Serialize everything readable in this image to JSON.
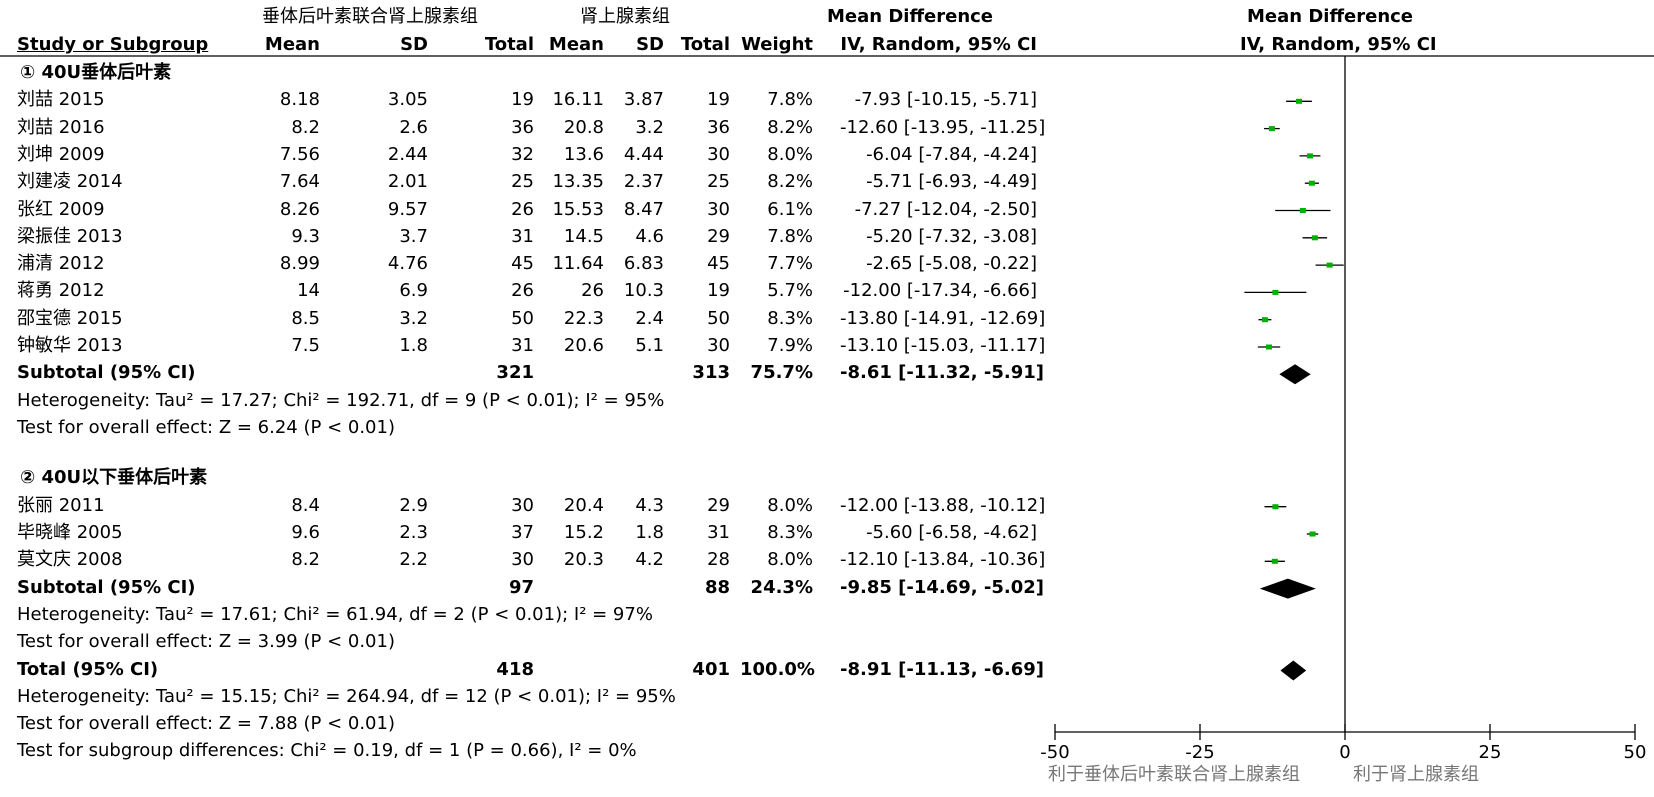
{
  "header": {
    "group1_title": "垂体后叶素联合肾上腺素组",
    "group2_title": "肾上腺素组",
    "md_title_left": "Mean Difference",
    "md_title_right": "Mean Difference",
    "col_study": "Study or Subgroup",
    "col_mean1": "Mean",
    "col_sd1": "SD",
    "col_total1": "Total",
    "col_mean2": "Mean",
    "col_sd2": "SD",
    "col_total2": "Total",
    "col_weight": "Weight",
    "col_ci_left": "IV, Random, 95% CI",
    "col_ci_right": "IV, Random, 95% CI"
  },
  "chart_data": {
    "type": "forest",
    "xlim": [
      -50,
      50
    ],
    "x_ticks": [
      "-50",
      "-25",
      "0",
      "25",
      "50"
    ],
    "x_tick_values": [
      -50,
      -25,
      0,
      25,
      50
    ],
    "favours_left": "利于垂体后叶素联合肾上腺素组",
    "favours_right": "利于肾上腺素组",
    "subgroups": [
      {
        "title": "① 40U垂体后叶素",
        "studies": [
          {
            "name": "刘喆 2015",
            "mean1": "8.18",
            "sd1": "3.05",
            "n1": "19",
            "mean2": "16.11",
            "sd2": "3.87",
            "n2": "19",
            "weight": "7.8%",
            "ci_text": "-7.93 [-10.15, -5.71]",
            "md": -7.93,
            "lo": -10.15,
            "hi": -5.71
          },
          {
            "name": "刘喆 2016",
            "mean1": "8.2",
            "sd1": "2.6",
            "n1": "36",
            "mean2": "20.8",
            "sd2": "3.2",
            "n2": "36",
            "weight": "8.2%",
            "ci_text": "-12.60 [-13.95, -11.25]",
            "md": -12.6,
            "lo": -13.95,
            "hi": -11.25
          },
          {
            "name": "刘坤 2009",
            "mean1": "7.56",
            "sd1": "2.44",
            "n1": "32",
            "mean2": "13.6",
            "sd2": "4.44",
            "n2": "30",
            "weight": "8.0%",
            "ci_text": "-6.04 [-7.84, -4.24]",
            "md": -6.04,
            "lo": -7.84,
            "hi": -4.24
          },
          {
            "name": "刘建凌 2014",
            "mean1": "7.64",
            "sd1": "2.01",
            "n1": "25",
            "mean2": "13.35",
            "sd2": "2.37",
            "n2": "25",
            "weight": "8.2%",
            "ci_text": "-5.71 [-6.93, -4.49]",
            "md": -5.71,
            "lo": -6.93,
            "hi": -4.49
          },
          {
            "name": "张红 2009",
            "mean1": "8.26",
            "sd1": "9.57",
            "n1": "26",
            "mean2": "15.53",
            "sd2": "8.47",
            "n2": "30",
            "weight": "6.1%",
            "ci_text": "-7.27 [-12.04, -2.50]",
            "md": -7.27,
            "lo": -12.04,
            "hi": -2.5
          },
          {
            "name": "梁振佳 2013",
            "mean1": "9.3",
            "sd1": "3.7",
            "n1": "31",
            "mean2": "14.5",
            "sd2": "4.6",
            "n2": "29",
            "weight": "7.8%",
            "ci_text": "-5.20 [-7.32, -3.08]",
            "md": -5.2,
            "lo": -7.32,
            "hi": -3.08
          },
          {
            "name": "浦清 2012",
            "mean1": "8.99",
            "sd1": "4.76",
            "n1": "45",
            "mean2": "11.64",
            "sd2": "6.83",
            "n2": "45",
            "weight": "7.7%",
            "ci_text": "-2.65 [-5.08, -0.22]",
            "md": -2.65,
            "lo": -5.08,
            "hi": -0.22
          },
          {
            "name": "蒋勇 2012",
            "mean1": "14",
            "sd1": "6.9",
            "n1": "26",
            "mean2": "26",
            "sd2": "10.3",
            "n2": "19",
            "weight": "5.7%",
            "ci_text": "-12.00 [-17.34, -6.66]",
            "md": -12.0,
            "lo": -17.34,
            "hi": -6.66
          },
          {
            "name": "邵宝德 2015",
            "mean1": "8.5",
            "sd1": "3.2",
            "n1": "50",
            "mean2": "22.3",
            "sd2": "2.4",
            "n2": "50",
            "weight": "8.3%",
            "ci_text": "-13.80 [-14.91, -12.69]",
            "md": -13.8,
            "lo": -14.91,
            "hi": -12.69
          },
          {
            "name": "钟敏华 2013",
            "mean1": "7.5",
            "sd1": "1.8",
            "n1": "31",
            "mean2": "20.6",
            "sd2": "5.1",
            "n2": "30",
            "weight": "7.9%",
            "ci_text": "-13.10 [-15.03, -11.17]",
            "md": -13.1,
            "lo": -15.03,
            "hi": -11.17
          }
        ],
        "subtotal": {
          "label": "Subtotal (95% CI)",
          "n1": "321",
          "n2": "313",
          "weight": "75.7%",
          "ci_text": "-8.61 [-11.32, -5.91]",
          "md": -8.61,
          "lo": -11.32,
          "hi": -5.91
        },
        "heterogeneity": "Heterogeneity: Tau² = 17.27; Chi² = 192.71, df = 9 (P < 0.01); I² = 95%",
        "overall": "Test for overall effect: Z = 6.24 (P < 0.01)"
      },
      {
        "title": "② 40U以下垂体后叶素",
        "studies": [
          {
            "name": "张丽 2011",
            "mean1": "8.4",
            "sd1": "2.9",
            "n1": "30",
            "mean2": "20.4",
            "sd2": "4.3",
            "n2": "29",
            "weight": "8.0%",
            "ci_text": "-12.00 [-13.88, -10.12]",
            "md": -12.0,
            "lo": -13.88,
            "hi": -10.12
          },
          {
            "name": "毕晓峰 2005",
            "mean1": "9.6",
            "sd1": "2.3",
            "n1": "37",
            "mean2": "15.2",
            "sd2": "1.8",
            "n2": "31",
            "weight": "8.3%",
            "ci_text": "-5.60 [-6.58, -4.62]",
            "md": -5.6,
            "lo": -6.58,
            "hi": -4.62
          },
          {
            "name": "莫文庆 2008",
            "mean1": "8.2",
            "sd1": "2.2",
            "n1": "30",
            "mean2": "20.3",
            "sd2": "4.2",
            "n2": "28",
            "weight": "8.0%",
            "ci_text": "-12.10 [-13.84, -10.36]",
            "md": -12.1,
            "lo": -13.84,
            "hi": -10.36
          }
        ],
        "subtotal": {
          "label": "Subtotal (95% CI)",
          "n1": "97",
          "n2": "88",
          "weight": "24.3%",
          "ci_text": "-9.85 [-14.69, -5.02]",
          "md": -9.85,
          "lo": -14.69,
          "hi": -5.02
        },
        "heterogeneity": "Heterogeneity: Tau² = 17.61; Chi² = 61.94, df = 2 (P < 0.01); I² = 97%",
        "overall": "Test for overall effect: Z = 3.99 (P < 0.01)"
      }
    ],
    "total": {
      "label": "Total (95% CI)",
      "n1": "418",
      "n2": "401",
      "weight": "100.0%",
      "ci_text": "-8.91 [-11.13, -6.69]",
      "md": -8.91,
      "lo": -11.13,
      "hi": -6.69
    },
    "total_heterogeneity": "Heterogeneity: Tau² = 15.15; Chi² = 264.94, df = 12 (P < 0.01); I² = 95%",
    "total_overall": "Test for overall effect: Z = 7.88 (P < 0.01)",
    "subgroup_diff": "Test for subgroup differences: Chi² = 0.19, df = 1 (P = 0.66), I² = 0%",
    "colors": {
      "study_marker": "#00b000",
      "line": "#000000",
      "favours_text": "#777777"
    }
  }
}
